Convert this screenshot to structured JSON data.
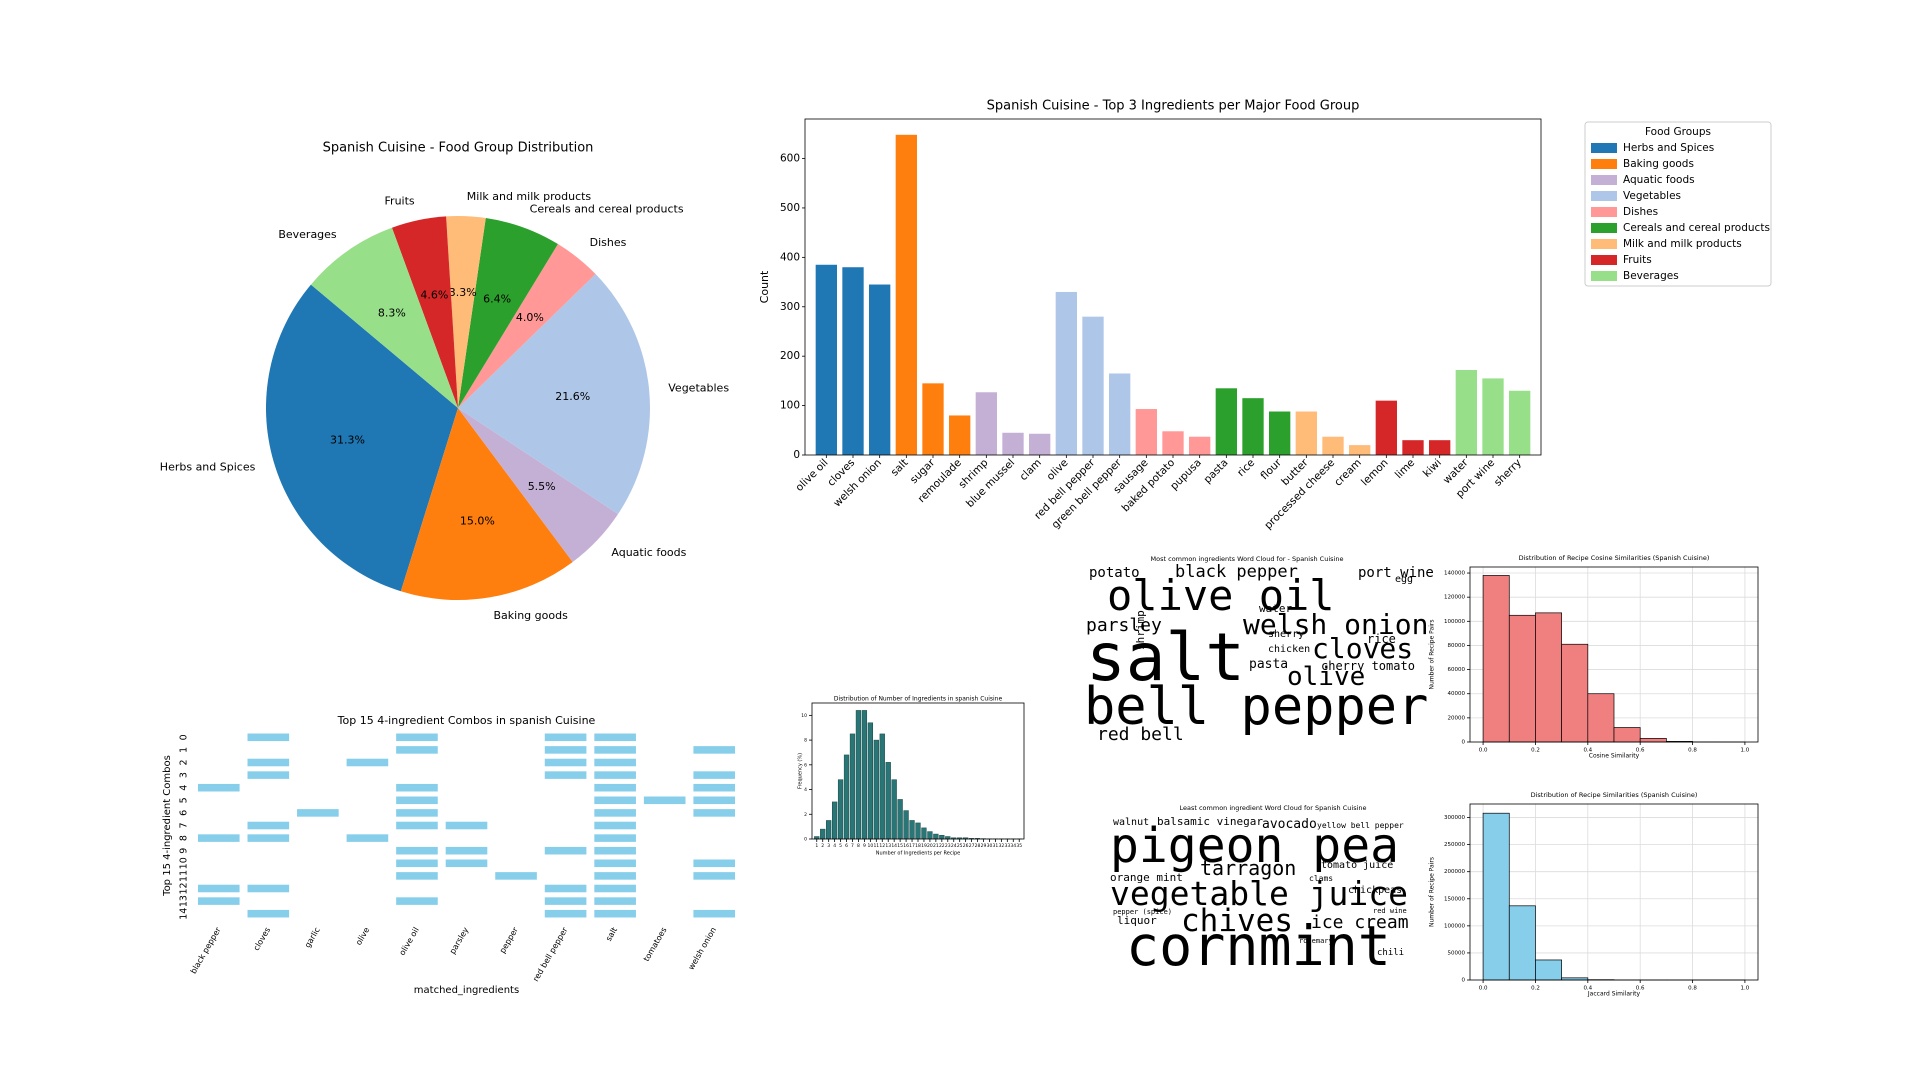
{
  "chart_data": [
    {
      "type": "pie",
      "title": "Spanish Cuisine - Food Group Distribution",
      "categories": [
        "Herbs and Spices",
        "Baking goods",
        "Aquatic foods",
        "Vegetables",
        "Dishes",
        "Cereals and cereal products",
        "Milk and milk products",
        "Fruits",
        "Beverages"
      ],
      "values": [
        31.3,
        15.0,
        5.5,
        21.6,
        4.0,
        6.4,
        3.3,
        4.6,
        8.3
      ],
      "value_labels": [
        "31.3%",
        "15.0%",
        "5.5%",
        "21.6%",
        "4.0%",
        "6.4%",
        "3.3%",
        "4.6%",
        "8.3%"
      ],
      "colors": [
        "#1f77b4",
        "#ff7f0e",
        "#c5b0d5",
        "#aec7e8",
        "#ff9896",
        "#2ca02c",
        "#ffbb78",
        "#d62728",
        "#98df8a"
      ]
    },
    {
      "type": "bar",
      "title": "Spanish Cuisine - Top 3 Ingredients per Major Food Group",
      "ylabel": "Count",
      "legend_title": "Food Groups",
      "ylim": [
        0,
        680
      ],
      "yticks": [
        0,
        100,
        200,
        300,
        400,
        500,
        600
      ],
      "series": [
        {
          "name": "Herbs and Spices",
          "color": "#1f77b4",
          "categories": [
            "olive oil",
            "cloves",
            "welsh onion"
          ],
          "values": [
            385,
            380,
            345
          ]
        },
        {
          "name": "Baking goods",
          "color": "#ff7f0e",
          "categories": [
            "salt",
            "sugar",
            "remoulade"
          ],
          "values": [
            648,
            145,
            80
          ]
        },
        {
          "name": "Aquatic foods",
          "color": "#c5b0d5",
          "categories": [
            "shrimp",
            "blue mussel",
            "clam"
          ],
          "values": [
            127,
            45,
            43
          ]
        },
        {
          "name": "Vegetables",
          "color": "#aec7e8",
          "categories": [
            "olive",
            "red bell pepper",
            "green bell pepper"
          ],
          "values": [
            330,
            280,
            165
          ]
        },
        {
          "name": "Dishes",
          "color": "#ff9896",
          "categories": [
            "sausage",
            "baked potato",
            "pupusa"
          ],
          "values": [
            93,
            48,
            37
          ]
        },
        {
          "name": "Cereals and cereal products",
          "color": "#2ca02c",
          "categories": [
            "pasta",
            "rice",
            "flour"
          ],
          "values": [
            135,
            115,
            88
          ]
        },
        {
          "name": "Milk and milk products",
          "color": "#ffbb78",
          "categories": [
            "butter",
            "processed cheese",
            "cream"
          ],
          "values": [
            88,
            37,
            20
          ]
        },
        {
          "name": "Fruits",
          "color": "#d62728",
          "categories": [
            "lemon",
            "lime",
            "kiwi"
          ],
          "values": [
            110,
            30,
            30
          ]
        },
        {
          "name": "Beverages",
          "color": "#98df8a",
          "categories": [
            "water",
            "port wine",
            "sherry"
          ],
          "values": [
            172,
            155,
            130
          ]
        }
      ]
    },
    {
      "type": "heatmap",
      "title": "Top 15 4-ingredient Combos in spanish Cuisine",
      "xlabel": "matched_ingredients",
      "ylabel": "Top 15 4-ingredient Combos",
      "color": "#87ceeb",
      "columns": [
        "black pepper",
        "cloves",
        "garlic",
        "olive",
        "olive oil",
        "parsley",
        "pepper",
        "red bell pepper",
        "salt",
        "tomatoes",
        "welsh onion"
      ],
      "rows": [
        0,
        1,
        2,
        3,
        4,
        5,
        6,
        7,
        8,
        9,
        10,
        11,
        12,
        13,
        14
      ],
      "matrix": [
        [
          0,
          1,
          0,
          0,
          1,
          0,
          0,
          1,
          1,
          0,
          0
        ],
        [
          0,
          0,
          0,
          0,
          1,
          0,
          0,
          1,
          1,
          0,
          1
        ],
        [
          0,
          1,
          0,
          1,
          0,
          0,
          0,
          1,
          1,
          0,
          0
        ],
        [
          0,
          1,
          0,
          0,
          0,
          0,
          0,
          1,
          1,
          0,
          1
        ],
        [
          1,
          0,
          0,
          0,
          1,
          0,
          0,
          0,
          1,
          0,
          1
        ],
        [
          0,
          0,
          0,
          0,
          1,
          0,
          0,
          0,
          1,
          1,
          1
        ],
        [
          0,
          0,
          1,
          0,
          1,
          0,
          0,
          0,
          1,
          0,
          1
        ],
        [
          0,
          1,
          0,
          0,
          1,
          1,
          0,
          0,
          1,
          0,
          0
        ],
        [
          1,
          1,
          0,
          1,
          0,
          0,
          0,
          0,
          1,
          0,
          0
        ],
        [
          0,
          0,
          0,
          0,
          1,
          1,
          0,
          1,
          1,
          0,
          0
        ],
        [
          0,
          0,
          0,
          0,
          1,
          1,
          0,
          0,
          1,
          0,
          1
        ],
        [
          0,
          0,
          0,
          0,
          1,
          0,
          1,
          0,
          1,
          0,
          1
        ],
        [
          1,
          1,
          0,
          0,
          0,
          0,
          0,
          1,
          1,
          0,
          0
        ],
        [
          1,
          0,
          0,
          0,
          1,
          0,
          0,
          1,
          1,
          0,
          0
        ],
        [
          0,
          1,
          0,
          0,
          0,
          0,
          0,
          1,
          1,
          0,
          1
        ]
      ]
    },
    {
      "type": "bar",
      "title": "Distribution of Number of Ingredients in spanish Cuisine",
      "xlabel": "Number of Ingredients per Recipe",
      "ylabel": "Frequency (%)",
      "color": "#2a7575",
      "categories": [
        1,
        2,
        3,
        4,
        5,
        6,
        7,
        8,
        9,
        10,
        11,
        12,
        13,
        14,
        15,
        16,
        17,
        18,
        19,
        20,
        21,
        22,
        23,
        24,
        25,
        26,
        27,
        28,
        29,
        30,
        31,
        32,
        33,
        34,
        35
      ],
      "values": [
        0.2,
        0.8,
        1.5,
        3.0,
        4.8,
        6.8,
        8.5,
        10.4,
        10.4,
        9.4,
        8.0,
        8.5,
        6.2,
        4.8,
        3.2,
        2.3,
        1.5,
        1.3,
        0.9,
        0.6,
        0.4,
        0.3,
        0.2,
        0.1,
        0.1,
        0.1,
        0.05,
        0.05,
        0.03,
        0.02,
        0.02,
        0.01,
        0.01,
        0.01,
        0.01
      ],
      "ylim": [
        0,
        11
      ],
      "yticks": [
        0,
        2,
        4,
        6,
        8,
        10
      ]
    },
    {
      "type": "wordcloud",
      "title": "Most common ingredients Word Cloud for - Spanish Cuisine",
      "words": [
        "salt",
        "bell pepper",
        "olive oil",
        "welsh onion",
        "cloves",
        "parsley",
        "olive",
        "red bell",
        "black pepper",
        "potato",
        "port wine",
        "pasta",
        "cherry tomato",
        "water",
        "shrimp",
        "chicken",
        "sherry",
        "rice",
        "egg"
      ]
    },
    {
      "type": "histogram",
      "title": "Distribution of Recipe Cosine Similarities (Spanish Cuisine)",
      "xlabel": "Cosine Similarity",
      "ylabel": "Number of Recipe Pairs",
      "color": "#f08080",
      "grid": true,
      "bins": [
        0,
        0.1,
        0.2,
        0.3,
        0.4,
        0.5,
        0.6,
        0.7,
        0.8,
        0.9,
        1.0
      ],
      "counts": [
        138000,
        105000,
        107000,
        81000,
        40000,
        12000,
        3000,
        500,
        50,
        10
      ],
      "xlim": [
        -0.05,
        1.05
      ],
      "xticks": [
        {
          "value": 0,
          "label": "0.0"
        },
        {
          "value": 0.2,
          "label": "0.2"
        },
        {
          "value": 0.4,
          "label": "0.4"
        },
        {
          "value": 0.6,
          "label": "0.6"
        },
        {
          "value": 0.8,
          "label": "0.8"
        },
        {
          "value": 1,
          "label": "1.0"
        }
      ],
      "ylim": [
        0,
        145000
      ],
      "yticks": [
        0,
        20000,
        40000,
        60000,
        80000,
        100000,
        120000,
        140000
      ]
    },
    {
      "type": "wordcloud",
      "title": "Least common ingredient Word Cloud for Spanish Cuisine",
      "words": [
        "pigeon pea",
        "vegetable juice",
        "cornmint",
        "chives",
        "tarragon",
        "ice cream",
        "avocado",
        "yellow bell pepper",
        "walnut",
        "balsamic vinegar",
        "orange mint",
        "tomato juice",
        "clams",
        "chickpeas",
        "liquor",
        "chili",
        "pepper (spice)",
        "red wine",
        "rosemary"
      ]
    },
    {
      "type": "histogram",
      "title": "Distribution of Recipe Similarities (Spanish Cuisine)",
      "xlabel": "Jaccard Similarity",
      "ylabel": "Number of Recipe Pairs",
      "color": "#87ceeb",
      "grid": true,
      "bins": [
        0,
        0.1,
        0.2,
        0.3,
        0.4,
        0.5,
        0.6,
        0.7,
        0.8,
        0.9,
        1.0
      ],
      "counts": [
        308000,
        137000,
        37000,
        4000,
        600,
        100,
        20,
        5,
        2,
        1
      ],
      "xlim": [
        -0.05,
        1.05
      ],
      "xticks": [
        {
          "value": 0,
          "label": "0.0"
        },
        {
          "value": 0.2,
          "label": "0.2"
        },
        {
          "value": 0.4,
          "label": "0.4"
        },
        {
          "value": 0.6,
          "label": "0.6"
        },
        {
          "value": 0.8,
          "label": "0.8"
        },
        {
          "value": 1,
          "label": "1.0"
        }
      ],
      "ylim": [
        0,
        325000
      ],
      "yticks": [
        0,
        50000,
        100000,
        150000,
        200000,
        250000,
        300000
      ]
    }
  ]
}
